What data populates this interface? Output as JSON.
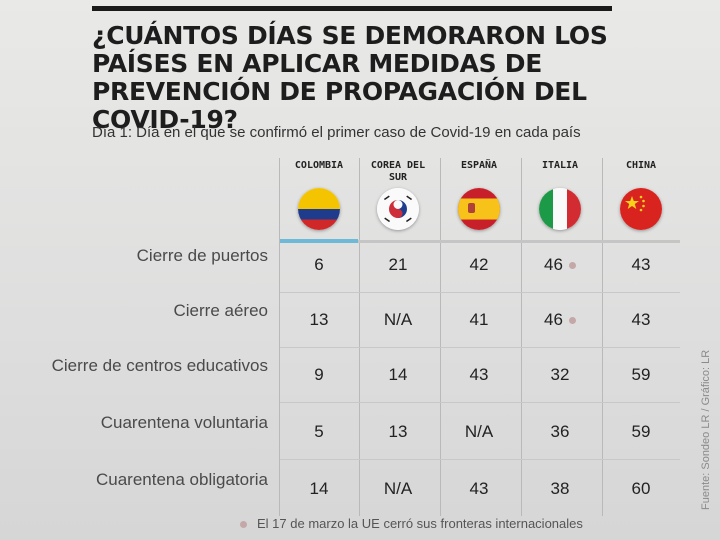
{
  "chart_data": {
    "type": "table",
    "title": "¿CUÁNTOS DÍAS SE DEMORARON LOS PAÍSES EN APLICAR MEDIDAS DE PREVENCIÓN DE PROPAGACIÓN DEL COVID-19?",
    "subtitle": "Día 1: Día en el que se confirmó el primer caso de Covid-19 en cada país",
    "columns": [
      {
        "name": "COLOMBIA",
        "flag": "colombia-flag"
      },
      {
        "name": "COREA DEL SUR",
        "flag": "south-korea-flag"
      },
      {
        "name": "ESPAÑA",
        "flag": "spain-flag"
      },
      {
        "name": "ITALIA",
        "flag": "italy-flag"
      },
      {
        "name": "CHINA",
        "flag": "china-flag"
      }
    ],
    "rows": [
      {
        "label": "Cierre de puertos",
        "values": [
          "6",
          "21",
          "42",
          "46",
          "43"
        ],
        "marked_col": 3
      },
      {
        "label": "Cierre aéreo",
        "values": [
          "13",
          "N/A",
          "41",
          "46",
          "43"
        ],
        "marked_col": 3
      },
      {
        "label": "Cierre de centros educativos",
        "values": [
          "9",
          "14",
          "43",
          "32",
          "59"
        ]
      },
      {
        "label": "Cuarentena voluntaria",
        "values": [
          "5",
          "13",
          "N/A",
          "36",
          "59"
        ]
      },
      {
        "label": "Cuarentena obligatoria",
        "values": [
          "14",
          "N/A",
          "43",
          "38",
          "60"
        ]
      }
    ],
    "footnote": "El 17 de marzo la UE cerró sus fronteras internacionales",
    "source": "Fuente: Sondeo LR / Gráfico: LR",
    "colors": {
      "accent": "#6fb9d8",
      "marker": "#c4a8a8"
    }
  }
}
